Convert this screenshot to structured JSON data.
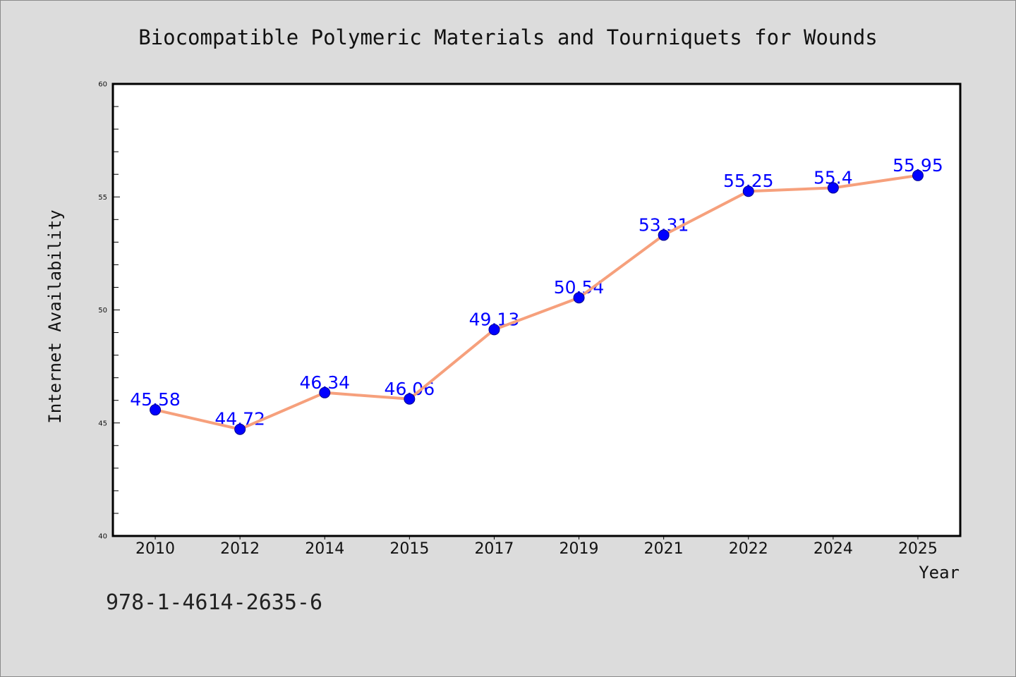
{
  "footer_text": "978-1-4614-2635-6",
  "colors": {
    "background": "#dcdcdc",
    "page_border": "#8a8a8a",
    "plot_background": "#ffffff",
    "axis": "#000000",
    "line": "#f6a07c",
    "marker_fill": "#0000ff",
    "marker_edge": "#00008b",
    "data_label": "#0000ff",
    "tick_label": "#111111"
  },
  "chart_data": {
    "type": "line",
    "title": "Biocompatible Polymeric Materials and Tourniquets for Wounds",
    "xlabel": "Year",
    "ylabel": "Internet Availability",
    "categories": [
      "2010",
      "2012",
      "2014",
      "2015",
      "2017",
      "2019",
      "2021",
      "2022",
      "2024",
      "2025"
    ],
    "values": [
      45.58,
      44.72,
      46.34,
      46.06,
      49.13,
      50.54,
      53.31,
      55.25,
      55.4,
      55.95
    ],
    "ylim": [
      40,
      60
    ],
    "yticks": [
      40,
      45,
      50,
      55,
      60
    ],
    "data_labels": true,
    "grid": false,
    "legend": "none"
  }
}
